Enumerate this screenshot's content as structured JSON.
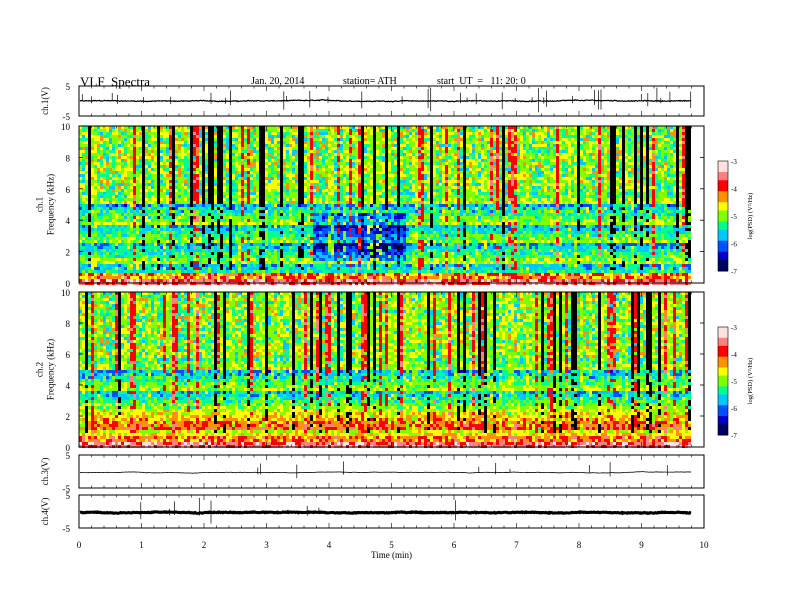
{
  "header": {
    "title": "VLF  Spectra",
    "date": "Jan. 20, 2014",
    "station": "station= ATH",
    "start": "start  UT  =   11: 20: 0"
  },
  "colors": {
    "colormap": [
      "#000060",
      "#0000c8",
      "#0050ff",
      "#00c8ff",
      "#00ff90",
      "#7fff00",
      "#ffff00",
      "#ff9000",
      "#ff0000",
      "#ff8080",
      "#ffe0e0"
    ]
  },
  "chart_data": [
    {
      "type": "line",
      "id": "ch1-waveform",
      "ylabel": "ch.1(V)",
      "ylim": [
        -5,
        5
      ],
      "yticks": [
        "5",
        "-5"
      ],
      "xlim": [
        0,
        10
      ],
      "baseline": 0.0
    },
    {
      "type": "heatmap",
      "id": "ch1-spectrogram",
      "ylabel": "ch.1\nFrequency  (kHz)",
      "ylim": [
        0,
        10
      ],
      "yticks": [
        "0",
        "2",
        "4",
        "6",
        "8",
        "10"
      ],
      "xlim": [
        0,
        9.8
      ],
      "colorbar": {
        "label": "log(PSD) (V²/Hz)",
        "range": [
          -7,
          -3
        ],
        "ticks": [
          "-3",
          "-4",
          "-5",
          "-6",
          "-7"
        ]
      }
    },
    {
      "type": "heatmap",
      "id": "ch2-spectrogram",
      "ylabel": "ch.2\nFrequency  (kHz)",
      "ylim": [
        0,
        10
      ],
      "yticks": [
        "0",
        "2",
        "4",
        "6",
        "8",
        "10"
      ],
      "xlim": [
        0,
        9.8
      ],
      "colorbar": {
        "label": "log(PSD) (V²/Hz)",
        "range": [
          -7,
          -3
        ],
        "ticks": [
          "-3",
          "-4",
          "-5",
          "-6",
          "-7"
        ]
      }
    },
    {
      "type": "line",
      "id": "ch3-waveform",
      "ylabel": "ch.3(V)",
      "ylim": [
        -5,
        5
      ],
      "yticks": [
        "5",
        "-5"
      ],
      "xlim": [
        0,
        10
      ],
      "baseline": -0.3
    },
    {
      "type": "line",
      "id": "ch4-waveform",
      "ylabel": "ch.4(V)",
      "ylim": [
        -5,
        5
      ],
      "yticks": [
        "5",
        "-5"
      ],
      "xlim": [
        0,
        10
      ],
      "baseline": -0.3
    }
  ],
  "xaxis": {
    "label": "Time  (min)",
    "ticks": [
      "0",
      "1",
      "2",
      "3",
      "4",
      "5",
      "6",
      "7",
      "8",
      "9",
      "10"
    ]
  }
}
